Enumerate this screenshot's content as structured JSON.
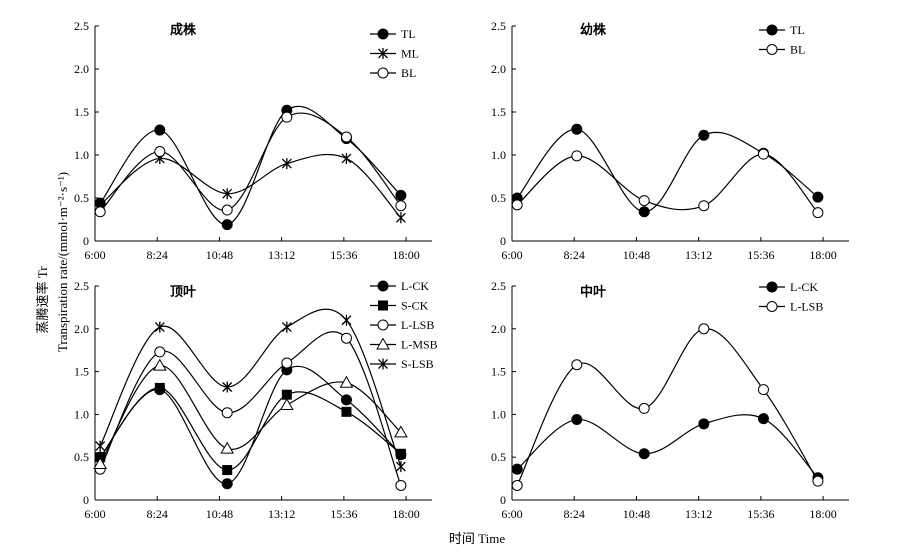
{
  "figure": {
    "ylabel_zh": "蒸腾速率 Tr",
    "ylabel_en": "Transpiration rate/(mmol·m⁻²·s⁻¹)",
    "xlabel": "时间 Time"
  },
  "chart_data": [
    {
      "type": "line",
      "title": "成株",
      "xticks": [
        "6:00",
        "8:24",
        "10:48",
        "13:12",
        "15:36",
        "18:00"
      ],
      "xlim": [
        6.0,
        19.0
      ],
      "ylim": [
        0,
        2.5
      ],
      "yticks": [
        "0",
        "0.5",
        "1.0",
        "1.5",
        "2.0",
        "2.5"
      ],
      "legend_position": "top-right",
      "series": [
        {
          "name": "TL",
          "marker": "filled-circle",
          "x": [
            6.2,
            8.5,
            11.1,
            13.4,
            15.7,
            17.8
          ],
          "y": [
            0.44,
            1.29,
            0.19,
            1.52,
            1.19,
            0.53
          ]
        },
        {
          "name": "ML",
          "marker": "asterisk",
          "x": [
            6.2,
            8.5,
            11.1,
            13.4,
            15.7,
            17.8
          ],
          "y": [
            0.42,
            0.96,
            0.55,
            0.9,
            0.96,
            0.27
          ]
        },
        {
          "name": "BL",
          "marker": "open-circle",
          "x": [
            6.2,
            8.5,
            11.1,
            13.4,
            15.7,
            17.8
          ],
          "y": [
            0.34,
            1.04,
            0.36,
            1.44,
            1.21,
            0.41
          ]
        }
      ]
    },
    {
      "type": "line",
      "title": "幼株",
      "xticks": [
        "6:00",
        "8:24",
        "10:48",
        "13:12",
        "15:36",
        "18:00"
      ],
      "xlim": [
        6.0,
        19.0
      ],
      "ylim": [
        0,
        2.5
      ],
      "yticks": [
        "0",
        "0.5",
        "1.0",
        "1.5",
        "2.0",
        "2.5"
      ],
      "legend_position": "top-right",
      "series": [
        {
          "name": "TL",
          "marker": "filled-circle",
          "x": [
            6.2,
            8.5,
            11.1,
            13.4,
            15.7,
            17.8
          ],
          "y": [
            0.5,
            1.3,
            0.34,
            1.23,
            1.02,
            0.51
          ]
        },
        {
          "name": "BL",
          "marker": "open-circle",
          "x": [
            6.2,
            8.5,
            11.1,
            13.4,
            15.7,
            17.8
          ],
          "y": [
            0.42,
            0.99,
            0.47,
            0.41,
            1.01,
            0.33
          ]
        }
      ]
    },
    {
      "type": "line",
      "title": "顶叶",
      "xticks": [
        "6:00",
        "8:24",
        "10:48",
        "13:12",
        "15:36",
        "18:00"
      ],
      "xlim": [
        6.0,
        19.0
      ],
      "ylim": [
        0,
        2.5
      ],
      "yticks": [
        "0",
        "0.5",
        "1.0",
        "1.5",
        "2.0",
        "2.5"
      ],
      "legend_position": "top-right",
      "series": [
        {
          "name": "L-CK",
          "marker": "filled-circle",
          "x": [
            6.2,
            8.5,
            11.1,
            13.4,
            15.7,
            17.8
          ],
          "y": [
            0.5,
            1.29,
            0.19,
            1.52,
            1.17,
            0.53
          ]
        },
        {
          "name": "S-CK",
          "marker": "filled-square",
          "x": [
            6.2,
            8.5,
            11.1,
            13.4,
            15.7,
            17.8
          ],
          "y": [
            0.5,
            1.31,
            0.35,
            1.23,
            1.03,
            0.54
          ]
        },
        {
          "name": "L-LSB",
          "marker": "open-circle",
          "x": [
            6.2,
            8.5,
            11.1,
            13.4,
            15.7,
            17.8
          ],
          "y": [
            0.36,
            1.73,
            1.02,
            1.6,
            1.89,
            0.17
          ]
        },
        {
          "name": "L-MSB",
          "marker": "open-triangle",
          "x": [
            6.2,
            8.5,
            11.1,
            13.4,
            15.7,
            17.8
          ],
          "y": [
            0.42,
            1.57,
            0.6,
            1.11,
            1.37,
            0.79
          ]
        },
        {
          "name": "S-LSB",
          "marker": "asterisk",
          "x": [
            6.2,
            8.5,
            11.1,
            13.4,
            15.7,
            17.8
          ],
          "y": [
            0.63,
            2.02,
            1.32,
            2.02,
            2.1,
            0.39
          ]
        }
      ]
    },
    {
      "type": "line",
      "title": "中叶",
      "xticks": [
        "6:00",
        "8:24",
        "10:48",
        "13:12",
        "15:36",
        "18:00"
      ],
      "xlim": [
        6.0,
        19.0
      ],
      "ylim": [
        0,
        2.5
      ],
      "yticks": [
        "0",
        "0.5",
        "1.0",
        "1.5",
        "2.0",
        "2.5"
      ],
      "legend_position": "top-right",
      "series": [
        {
          "name": "L-CK",
          "marker": "filled-circle",
          "x": [
            6.2,
            8.5,
            11.1,
            13.4,
            15.7,
            17.8
          ],
          "y": [
            0.36,
            0.94,
            0.54,
            0.89,
            0.95,
            0.26
          ]
        },
        {
          "name": "L-LSB",
          "marker": "open-circle",
          "x": [
            6.2,
            8.5,
            11.1,
            13.4,
            15.7,
            17.8
          ],
          "y": [
            0.17,
            1.58,
            1.07,
            2.0,
            1.29,
            0.22
          ]
        }
      ]
    }
  ]
}
